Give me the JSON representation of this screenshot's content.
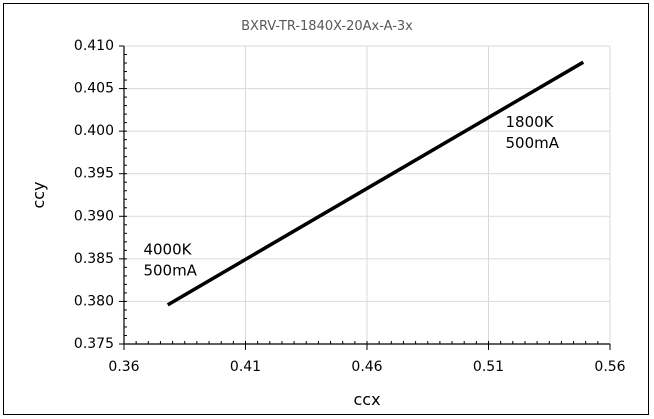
{
  "chart_data": {
    "type": "line",
    "title": "BXRV-TR-1840X-20Ax-A-3x",
    "xlabel": "ccx",
    "ylabel": "ccy",
    "xlim": [
      0.36,
      0.56
    ],
    "ylim": [
      0.375,
      0.41
    ],
    "x_ticks": [
      "0.36",
      "0.41",
      "0.46",
      "0.51",
      "0.56"
    ],
    "y_ticks": [
      "0.410",
      "0.405",
      "0.400",
      "0.395",
      "0.390",
      "0.385",
      "0.380",
      "0.375"
    ],
    "grid": true,
    "legend": "none",
    "series": [
      {
        "color": "#000000",
        "x": [
          0.378,
          0.549
        ],
        "y": [
          0.3796,
          0.4081
        ]
      }
    ],
    "annotations": [
      {
        "lines": [
          "1800K",
          "500mA"
        ],
        "x": 0.517,
        "y": 0.4005
      },
      {
        "lines": [
          "4000K",
          "500mA"
        ],
        "x": 0.368,
        "y": 0.3855
      }
    ]
  }
}
